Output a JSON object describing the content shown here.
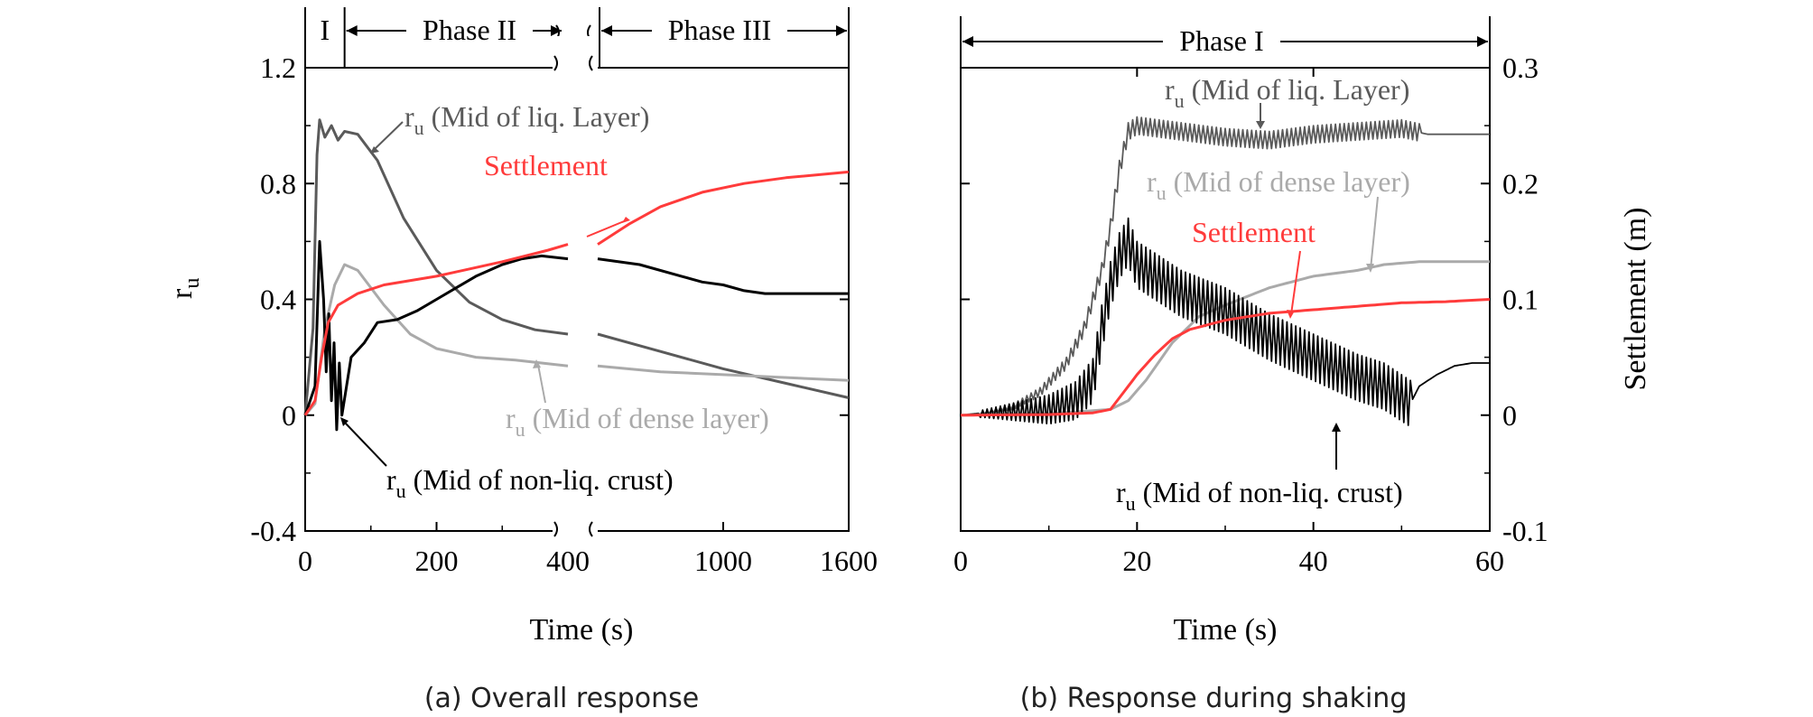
{
  "colors": {
    "liq": "#5a5a5a",
    "dense": "#aaaaaa",
    "crust": "#000000",
    "settlement": "#ff3b3b",
    "axis": "#000000"
  },
  "chart_data": [
    {
      "id": "a",
      "type": "line",
      "caption": "(a) Overall response",
      "xlabel": "Time (s)",
      "ylabel": "r",
      "ylabel_sub": "u",
      "ylim": [
        -0.4,
        1.2
      ],
      "y_ticks": [
        "-0.4",
        "0",
        "0.4",
        "0.8",
        "1.2"
      ],
      "x_segments": [
        {
          "range": [
            0,
            400
          ],
          "ticks": [
            "0",
            "200",
            "400"
          ]
        },
        {
          "range": [
            400,
            1600
          ],
          "ticks": [
            "1000",
            "1600"
          ]
        }
      ],
      "axis_break_at": 400,
      "phases": [
        {
          "label": "I",
          "range": [
            0,
            60
          ]
        },
        {
          "label": "Phase II",
          "range": [
            60,
            400
          ]
        },
        {
          "label": "Phase III",
          "range": [
            400,
            1600
          ]
        }
      ],
      "series": [
        {
          "name": "ru Mid of liq. Layer",
          "color_key": "liq",
          "axis": "left",
          "points": [
            [
              0,
              0
            ],
            [
              12,
              0.3
            ],
            [
              18,
              0.9
            ],
            [
              22,
              1.02
            ],
            [
              30,
              0.96
            ],
            [
              40,
              1.0
            ],
            [
              50,
              0.95
            ],
            [
              60,
              0.98
            ],
            [
              80,
              0.97
            ],
            [
              110,
              0.88
            ],
            [
              150,
              0.68
            ],
            [
              200,
              0.5
            ],
            [
              250,
              0.39
            ],
            [
              300,
              0.33
            ],
            [
              350,
              0.295
            ],
            [
              400,
              0.28
            ],
            [
              700,
              0.22
            ],
            [
              1000,
              0.16
            ],
            [
              1300,
              0.11
            ],
            [
              1600,
              0.06
            ]
          ]
        },
        {
          "name": "ru Mid of dense layer",
          "color_key": "dense",
          "axis": "left",
          "points": [
            [
              0,
              0
            ],
            [
              15,
              0.04
            ],
            [
              30,
              0.3
            ],
            [
              45,
              0.45
            ],
            [
              60,
              0.52
            ],
            [
              80,
              0.5
            ],
            [
              120,
              0.38
            ],
            [
              160,
              0.28
            ],
            [
              200,
              0.23
            ],
            [
              260,
              0.2
            ],
            [
              320,
              0.19
            ],
            [
              360,
              0.18
            ],
            [
              400,
              0.17
            ],
            [
              700,
              0.15
            ],
            [
              1000,
              0.14
            ],
            [
              1600,
              0.12
            ]
          ]
        },
        {
          "name": "ru Mid of non-liq. crust",
          "color_key": "crust",
          "axis": "left",
          "points": [
            [
              0,
              0
            ],
            [
              15,
              0.1
            ],
            [
              22,
              0.6
            ],
            [
              28,
              0.4
            ],
            [
              32,
              0.15
            ],
            [
              36,
              0.35
            ],
            [
              40,
              0.05
            ],
            [
              44,
              0.25
            ],
            [
              48,
              -0.05
            ],
            [
              52,
              0.18
            ],
            [
              56,
              0.0
            ],
            [
              70,
              0.2
            ],
            [
              90,
              0.25
            ],
            [
              110,
              0.32
            ],
            [
              140,
              0.33
            ],
            [
              170,
              0.36
            ],
            [
              200,
              0.4
            ],
            [
              230,
              0.44
            ],
            [
              260,
              0.48
            ],
            [
              300,
              0.52
            ],
            [
              330,
              0.54
            ],
            [
              360,
              0.55
            ],
            [
              400,
              0.54
            ],
            [
              600,
              0.52
            ],
            [
              800,
              0.48
            ],
            [
              900,
              0.46
            ],
            [
              1000,
              0.45
            ],
            [
              1100,
              0.43
            ],
            [
              1200,
              0.42
            ],
            [
              1600,
              0.42
            ]
          ]
        },
        {
          "name": "Settlement",
          "color_key": "settlement",
          "axis": "left",
          "points": [
            [
              0,
              0
            ],
            [
              15,
              0.05
            ],
            [
              25,
              0.2
            ],
            [
              35,
              0.32
            ],
            [
              50,
              0.38
            ],
            [
              80,
              0.42
            ],
            [
              120,
              0.45
            ],
            [
              200,
              0.48
            ],
            [
              300,
              0.53
            ],
            [
              370,
              0.57
            ],
            [
              400,
              0.59
            ],
            [
              550,
              0.66
            ],
            [
              700,
              0.72
            ],
            [
              900,
              0.77
            ],
            [
              1100,
              0.8
            ],
            [
              1300,
              0.82
            ],
            [
              1600,
              0.84
            ]
          ]
        }
      ],
      "annotations": [
        {
          "main": "r",
          "sub": "u",
          "text": " (Mid of liq. Layer)"
        },
        {
          "text": "Settlement"
        },
        {
          "main": "r",
          "sub": "u",
          "text": " (Mid of dense layer)"
        },
        {
          "main": "r",
          "sub": "u",
          "text": " (Mid of non-liq. crust)"
        }
      ]
    },
    {
      "id": "b",
      "type": "line",
      "caption": "(b) Response during shaking",
      "xlabel": "Time (s)",
      "ylabel_right": "Settlement (m)",
      "xlim": [
        0,
        60
      ],
      "x_ticks": [
        "0",
        "20",
        "40",
        "60"
      ],
      "ylim_left": [
        -0.4,
        1.2
      ],
      "ylim_right": [
        -0.1,
        0.3
      ],
      "y_ticks_right": [
        "-0.1",
        "0",
        "0.1",
        "0.2",
        "0.3"
      ],
      "phases": [
        {
          "label": "Phase I",
          "range": [
            0,
            60
          ]
        }
      ],
      "series": [
        {
          "name": "ru Mid of liq. Layer",
          "color_key": "liq",
          "axis": "left",
          "points": [
            [
              0,
              0
            ],
            [
              3,
              0.01
            ],
            [
              6,
              0.03
            ],
            [
              9,
              0.08
            ],
            [
              12,
              0.18
            ],
            [
              14,
              0.3
            ],
            [
              16,
              0.5
            ],
            [
              17,
              0.65
            ],
            [
              18,
              0.85
            ],
            [
              19,
              0.98
            ],
            [
              20,
              1.0
            ],
            [
              25,
              0.98
            ],
            [
              30,
              0.96
            ],
            [
              35,
              0.95
            ],
            [
              40,
              0.97
            ],
            [
              45,
              0.98
            ],
            [
              50,
              0.99
            ],
            [
              53,
              0.97
            ],
            [
              60,
              0.97
            ]
          ],
          "osc_amplitude": 0.03,
          "osc_range": [
            18,
            52
          ]
        },
        {
          "name": "ru Mid of dense layer",
          "color_key": "dense",
          "axis": "left",
          "points": [
            [
              0,
              0
            ],
            [
              10,
              0.005
            ],
            [
              17,
              0.02
            ],
            [
              19,
              0.05
            ],
            [
              21,
              0.12
            ],
            [
              24,
              0.25
            ],
            [
              27,
              0.34
            ],
            [
              30,
              0.38
            ],
            [
              35,
              0.44
            ],
            [
              40,
              0.48
            ],
            [
              45,
              0.5
            ],
            [
              48,
              0.52
            ],
            [
              52,
              0.53
            ],
            [
              60,
              0.53
            ]
          ]
        },
        {
          "name": "ru Mid of non-liq. crust",
          "color_key": "crust",
          "axis": "left",
          "points": [
            [
              0,
              0
            ],
            [
              5,
              0.01
            ],
            [
              10,
              0.02
            ],
            [
              13,
              0.05
            ],
            [
              15,
              0.12
            ],
            [
              16,
              0.3
            ],
            [
              17,
              0.45
            ],
            [
              18,
              0.55
            ],
            [
              19,
              0.6
            ],
            [
              20,
              0.52
            ],
            [
              22,
              0.48
            ],
            [
              25,
              0.42
            ],
            [
              30,
              0.36
            ],
            [
              35,
              0.27
            ],
            [
              40,
              0.2
            ],
            [
              45,
              0.13
            ],
            [
              48,
              0.1
            ],
            [
              51,
              0.04
            ],
            [
              52,
              0.1
            ],
            [
              54,
              0.14
            ],
            [
              56,
              0.17
            ],
            [
              58,
              0.18
            ],
            [
              60,
              0.18
            ]
          ],
          "osc_amplitude": 0.08,
          "osc_range": [
            16,
            51
          ]
        },
        {
          "name": "Settlement",
          "color_key": "settlement",
          "axis": "right",
          "points": [
            [
              0,
              0
            ],
            [
              10,
              0.0005
            ],
            [
              15,
              0.002
            ],
            [
              17,
              0.005
            ],
            [
              18,
              0.015
            ],
            [
              20,
              0.035
            ],
            [
              22,
              0.052
            ],
            [
              24,
              0.066
            ],
            [
              26,
              0.074
            ],
            [
              30,
              0.082
            ],
            [
              35,
              0.088
            ],
            [
              40,
              0.091
            ],
            [
              45,
              0.094
            ],
            [
              50,
              0.097
            ],
            [
              55,
              0.098
            ],
            [
              60,
              0.1
            ]
          ]
        }
      ],
      "annotations": [
        {
          "main": "r",
          "sub": "u",
          "text": " (Mid of liq. Layer)"
        },
        {
          "main": "r",
          "sub": "u",
          "text": " (Mid of dense layer)"
        },
        {
          "text": "Settlement"
        },
        {
          "main": "r",
          "sub": "u",
          "text": " (Mid of non-liq. crust)"
        }
      ]
    }
  ]
}
